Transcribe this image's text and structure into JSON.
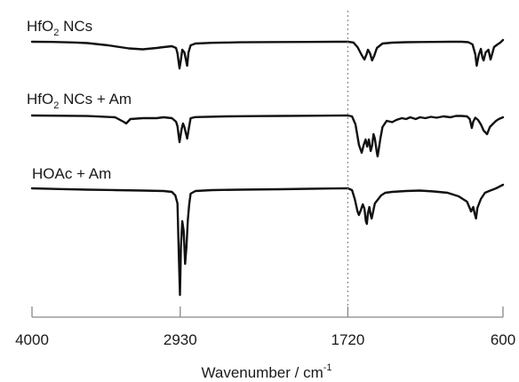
{
  "chart_data": {
    "type": "line",
    "xlabel": "Wavenumber / cm",
    "xlabel_sup": "-1",
    "x_ticks": [
      4000,
      2930,
      1720,
      600
    ],
    "x_tick_labels": [
      "4000",
      "2930",
      "1720",
      "600"
    ],
    "xlim": [
      4000,
      600
    ],
    "x_reversed": true,
    "reference_line": {
      "x": 1720,
      "style": "dotted"
    },
    "colors": {
      "line": "#111111",
      "axis": "#888888",
      "ref": "#8c8c8c",
      "text": "#1a1a1a"
    },
    "series": [
      {
        "name": "HfO₂ NCs",
        "label_main": "HfO",
        "label_sub": "2",
        "label_rest": " NCs",
        "points": [
          [
            4000,
            0.0
          ],
          [
            3850,
            0.2
          ],
          [
            3700,
            0.8
          ],
          [
            3600,
            1.5
          ],
          [
            3450,
            4.0
          ],
          [
            3300,
            7.5
          ],
          [
            3200,
            8.5
          ],
          [
            3100,
            7.0
          ],
          [
            3050,
            6.0
          ],
          [
            2990,
            5.0
          ],
          [
            2960,
            7.0
          ],
          [
            2950,
            13.0
          ],
          [
            2935,
            30.0
          ],
          [
            2925,
            20.0
          ],
          [
            2915,
            9.0
          ],
          [
            2900,
            12.0
          ],
          [
            2880,
            27.0
          ],
          [
            2870,
            12.0
          ],
          [
            2855,
            4.0
          ],
          [
            2820,
            2.0
          ],
          [
            2700,
            1.2
          ],
          [
            2500,
            0.6
          ],
          [
            2200,
            0.3
          ],
          [
            2000,
            0.2
          ],
          [
            1800,
            0.0
          ],
          [
            1720,
            0.0
          ],
          [
            1680,
            0.8
          ],
          [
            1650,
            6.0
          ],
          [
            1620,
            15.0
          ],
          [
            1600,
            20.0
          ],
          [
            1585,
            14.0
          ],
          [
            1575,
            9.0
          ],
          [
            1560,
            13.0
          ],
          [
            1545,
            21.0
          ],
          [
            1530,
            16.0
          ],
          [
            1510,
            7.0
          ],
          [
            1470,
            2.0
          ],
          [
            1400,
            1.0
          ],
          [
            1300,
            0.5
          ],
          [
            1200,
            0.3
          ],
          [
            1100,
            0.2
          ],
          [
            980,
            0.0
          ],
          [
            900,
            0.0
          ],
          [
            850,
            0.5
          ],
          [
            820,
            3.0
          ],
          [
            800,
            14.0
          ],
          [
            790,
            27.0
          ],
          [
            775,
            15.0
          ],
          [
            760,
            8.0
          ],
          [
            748,
            18.0
          ],
          [
            740,
            21.0
          ],
          [
            725,
            12.0
          ],
          [
            705,
            9.0
          ],
          [
            690,
            20.0
          ],
          [
            675,
            12.0
          ],
          [
            665,
            6.0
          ],
          [
            640,
            3.0
          ],
          [
            620,
            1.0
          ],
          [
            600,
            -2.0
          ]
        ]
      },
      {
        "name": "HfO₂ NCs + Am",
        "label_main": "HfO",
        "label_sub": "2",
        "label_rest": " NCs + Am",
        "points": [
          [
            4000,
            0.0
          ],
          [
            3600,
            0.6
          ],
          [
            3400,
            2.0
          ],
          [
            3340,
            7.0
          ],
          [
            3320,
            9.0
          ],
          [
            3290,
            4.0
          ],
          [
            3200,
            3.0
          ],
          [
            3100,
            3.0
          ],
          [
            3050,
            2.0
          ],
          [
            2990,
            3.0
          ],
          [
            2960,
            7.0
          ],
          [
            2950,
            12.0
          ],
          [
            2935,
            30.0
          ],
          [
            2920,
            15.0
          ],
          [
            2910,
            9.0
          ],
          [
            2900,
            13.0
          ],
          [
            2880,
            26.0
          ],
          [
            2865,
            12.0
          ],
          [
            2855,
            3.0
          ],
          [
            2820,
            1.8
          ],
          [
            2600,
            1.0
          ],
          [
            2400,
            0.7
          ],
          [
            2200,
            0.5
          ],
          [
            2000,
            0.3
          ],
          [
            1800,
            0.1
          ],
          [
            1720,
            0.0
          ],
          [
            1690,
            1.0
          ],
          [
            1665,
            10.0
          ],
          [
            1640,
            33.0
          ],
          [
            1620,
            42.0
          ],
          [
            1605,
            33.0
          ],
          [
            1592,
            27.0
          ],
          [
            1580,
            35.0
          ],
          [
            1568,
            27.0
          ],
          [
            1555,
            40.0
          ],
          [
            1545,
            34.0
          ],
          [
            1535,
            21.0
          ],
          [
            1525,
            26.0
          ],
          [
            1510,
            42.0
          ],
          [
            1505,
            46.0
          ],
          [
            1495,
            36.0
          ],
          [
            1485,
            26.0
          ],
          [
            1470,
            13.0
          ],
          [
            1440,
            6.0
          ],
          [
            1400,
            7.5
          ],
          [
            1370,
            5.0
          ],
          [
            1330,
            3.0
          ],
          [
            1300,
            4.0
          ],
          [
            1270,
            2.0
          ],
          [
            1230,
            4.0
          ],
          [
            1200,
            2.0
          ],
          [
            1160,
            3.0
          ],
          [
            1120,
            1.5
          ],
          [
            1080,
            2.5
          ],
          [
            1030,
            1.0
          ],
          [
            980,
            2.0
          ],
          [
            940,
            0.5
          ],
          [
            900,
            0.5
          ],
          [
            860,
            1.0
          ],
          [
            840,
            4.0
          ],
          [
            825,
            14.0
          ],
          [
            815,
            7.0
          ],
          [
            800,
            2.5
          ],
          [
            780,
            5.0
          ],
          [
            760,
            10.0
          ],
          [
            740,
            17.0
          ],
          [
            715,
            21.0
          ],
          [
            695,
            13.0
          ],
          [
            670,
            9.0
          ],
          [
            650,
            6.0
          ],
          [
            630,
            4.0
          ],
          [
            600,
            2.0
          ]
        ]
      },
      {
        "name": "HOAc + Am",
        "label_main": "HOAc + Am",
        "label_sub": "",
        "label_rest": "",
        "points": [
          [
            4000,
            0.0
          ],
          [
            3800,
            0.8
          ],
          [
            3600,
            1.5
          ],
          [
            3400,
            2.0
          ],
          [
            3200,
            2.5
          ],
          [
            3050,
            3.0
          ],
          [
            2990,
            4.0
          ],
          [
            2965,
            8.0
          ],
          [
            2950,
            17.0
          ],
          [
            2940,
            75.0
          ],
          [
            2932,
            120.0
          ],
          [
            2925,
            65.0
          ],
          [
            2915,
            37.0
          ],
          [
            2905,
            48.0
          ],
          [
            2895,
            85.0
          ],
          [
            2885,
            66.0
          ],
          [
            2875,
            35.0
          ],
          [
            2865,
            18.0
          ],
          [
            2855,
            6.0
          ],
          [
            2820,
            3.0
          ],
          [
            2700,
            2.0
          ],
          [
            2500,
            1.5
          ],
          [
            2200,
            1.0
          ],
          [
            2000,
            0.5
          ],
          [
            1850,
            0.2
          ],
          [
            1720,
            0.0
          ],
          [
            1690,
            2.0
          ],
          [
            1670,
            12.0
          ],
          [
            1650,
            26.0
          ],
          [
            1640,
            30.0
          ],
          [
            1625,
            24.0
          ],
          [
            1612,
            18.0
          ],
          [
            1600,
            23.0
          ],
          [
            1590,
            37.0
          ],
          [
            1583,
            40.0
          ],
          [
            1575,
            28.0
          ],
          [
            1565,
            21.0
          ],
          [
            1555,
            30.0
          ],
          [
            1548,
            34.0
          ],
          [
            1540,
            28.0
          ],
          [
            1525,
            17.0
          ],
          [
            1500,
            12.0
          ],
          [
            1480,
            8.0
          ],
          [
            1450,
            5.0
          ],
          [
            1400,
            4.0
          ],
          [
            1300,
            3.0
          ],
          [
            1200,
            2.5
          ],
          [
            1100,
            3.5
          ],
          [
            1000,
            5.0
          ],
          [
            920,
            9.0
          ],
          [
            860,
            15.0
          ],
          [
            830,
            26.0
          ],
          [
            815,
            21.0
          ],
          [
            805,
            28.0
          ],
          [
            795,
            34.0
          ],
          [
            785,
            22.0
          ],
          [
            760,
            12.0
          ],
          [
            730,
            5.0
          ],
          [
            700,
            3.0
          ],
          [
            650,
            0.0
          ],
          [
            600,
            -4.0
          ]
        ]
      }
    ]
  }
}
